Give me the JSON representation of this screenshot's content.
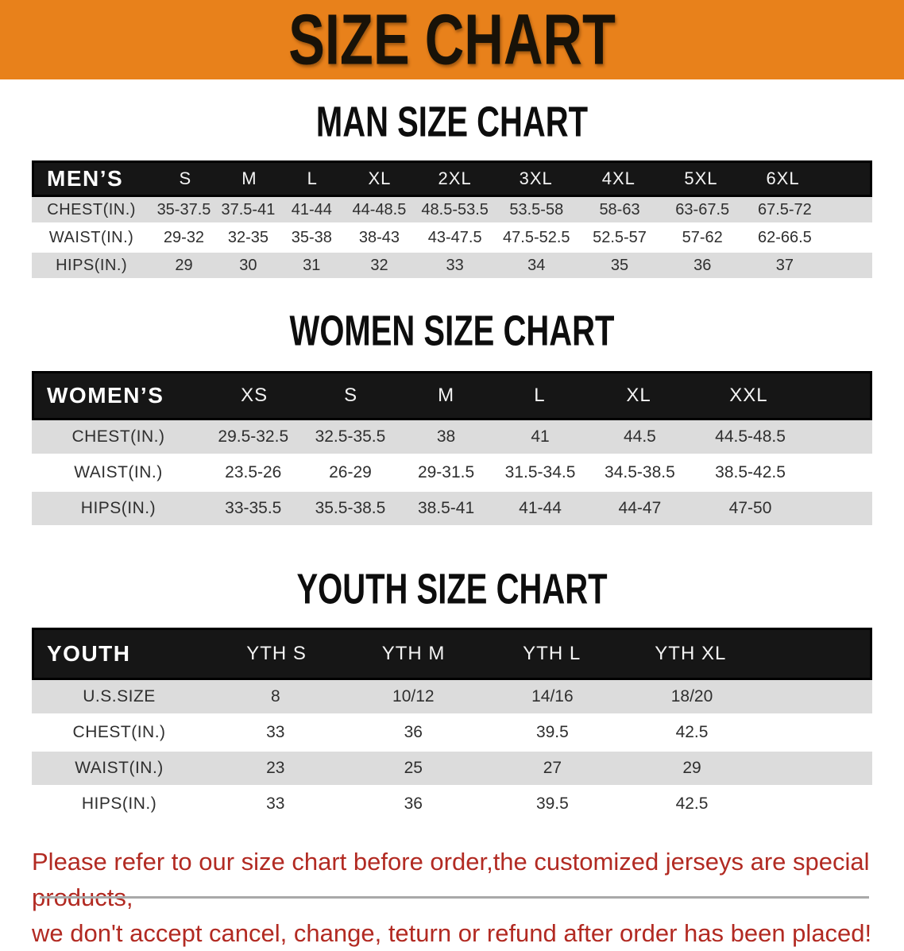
{
  "banner": {
    "title": "SIZE CHART"
  },
  "colors": {
    "banner_orange": "#E8811B",
    "table_header_black": "#161616",
    "row_gray": "#DCDCDC",
    "footnote_red": "#B22A22"
  },
  "sections": [
    {
      "heading": "MAN SIZE CHART",
      "table": {
        "header": [
          "MEN’S",
          "S",
          "M",
          "L",
          "XL",
          "2XL",
          "3XL",
          "4XL",
          "5XL",
          "6XL"
        ],
        "rows": [
          [
            "CHEST(IN.)",
            "35-37.5",
            "37.5-41",
            "41-44",
            "44-48.5",
            "48.5-53.5",
            "53.5-58",
            "58-63",
            "63-67.5",
            "67.5-72"
          ],
          [
            "WAIST(IN.)",
            "29-32",
            "32-35",
            "35-38",
            "38-43",
            "43-47.5",
            "47.5-52.5",
            "52.5-57",
            "57-62",
            "62-66.5"
          ],
          [
            "HIPS(IN.)",
            "29",
            "30",
            "31",
            "32",
            "33",
            "34",
            "35",
            "36",
            "37"
          ]
        ]
      }
    },
    {
      "heading": "WOMEN SIZE CHART",
      "table": {
        "header": [
          "WOMEN’S",
          "XS",
          "S",
          "M",
          "L",
          "XL",
          "XXL"
        ],
        "rows": [
          [
            "CHEST(IN.)",
            "29.5-32.5",
            "32.5-35.5",
            "38",
            "41",
            "44.5",
            "44.5-48.5"
          ],
          [
            "WAIST(IN.)",
            "23.5-26",
            "26-29",
            "29-31.5",
            "31.5-34.5",
            "34.5-38.5",
            "38.5-42.5"
          ],
          [
            "HIPS(IN.)",
            "33-35.5",
            "35.5-38.5",
            "38.5-41",
            "41-44",
            "44-47",
            "47-50"
          ]
        ]
      }
    },
    {
      "heading": "YOUTH SIZE CHART",
      "table": {
        "header": [
          "YOUTH",
          "YTH S",
          "YTH M",
          "YTH L",
          "YTH XL"
        ],
        "rows": [
          [
            "U.S.SIZE",
            "8",
            "10/12",
            "14/16",
            "18/20"
          ],
          [
            "CHEST(IN.)",
            "33",
            "36",
            "39.5",
            "42.5"
          ],
          [
            "WAIST(IN.)",
            "23",
            "25",
            "27",
            "29"
          ],
          [
            "HIPS(IN.)",
            "33",
            "36",
            "39.5",
            "42.5"
          ]
        ]
      }
    }
  ],
  "footnote": {
    "line1": "Please refer to our size chart before order,the customized jerseys are special products,",
    "line2": "we don't accept cancel, change, teturn or refund after order has been placed!"
  }
}
